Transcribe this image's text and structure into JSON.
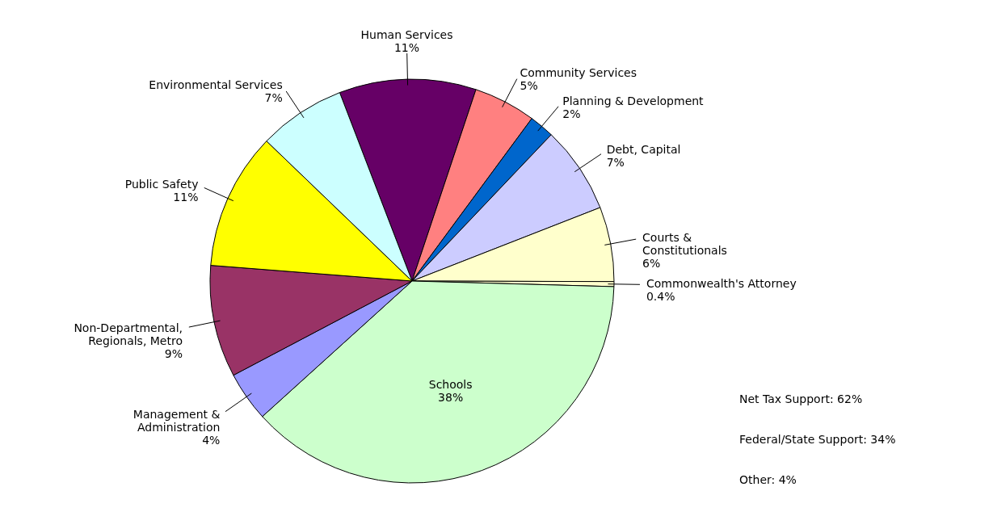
{
  "chart_data": {
    "type": "pie",
    "categories": [
      "Human Services",
      "Community Services",
      "Planning & Development",
      "Debt, Capital",
      "Courts & Constitutionals",
      "Commonwealth's Attorney",
      "Schools",
      "Management & Administration",
      "Non-Departmental, Regionals, Metro",
      "Public Safety",
      "Environmental Services"
    ],
    "values": [
      11,
      5,
      2,
      7,
      6,
      0.4,
      38,
      4,
      9,
      11,
      7
    ],
    "value_labels": [
      "11%",
      "5%",
      "2%",
      "7%",
      "6%",
      "0.4%",
      "38%",
      "4%",
      "9%",
      "11%",
      "7%"
    ],
    "colors": [
      "#660066",
      "#ff8080",
      "#0066cc",
      "#ccccff",
      "#ffffcc",
      "#ffffcc",
      "#ccffcc",
      "#9999ff",
      "#993366",
      "#ffff00",
      "#ccffff"
    ],
    "annotations": [
      "Net Tax Support: 62%",
      "Federal/State Support: 34%",
      "Other: 4%"
    ]
  }
}
